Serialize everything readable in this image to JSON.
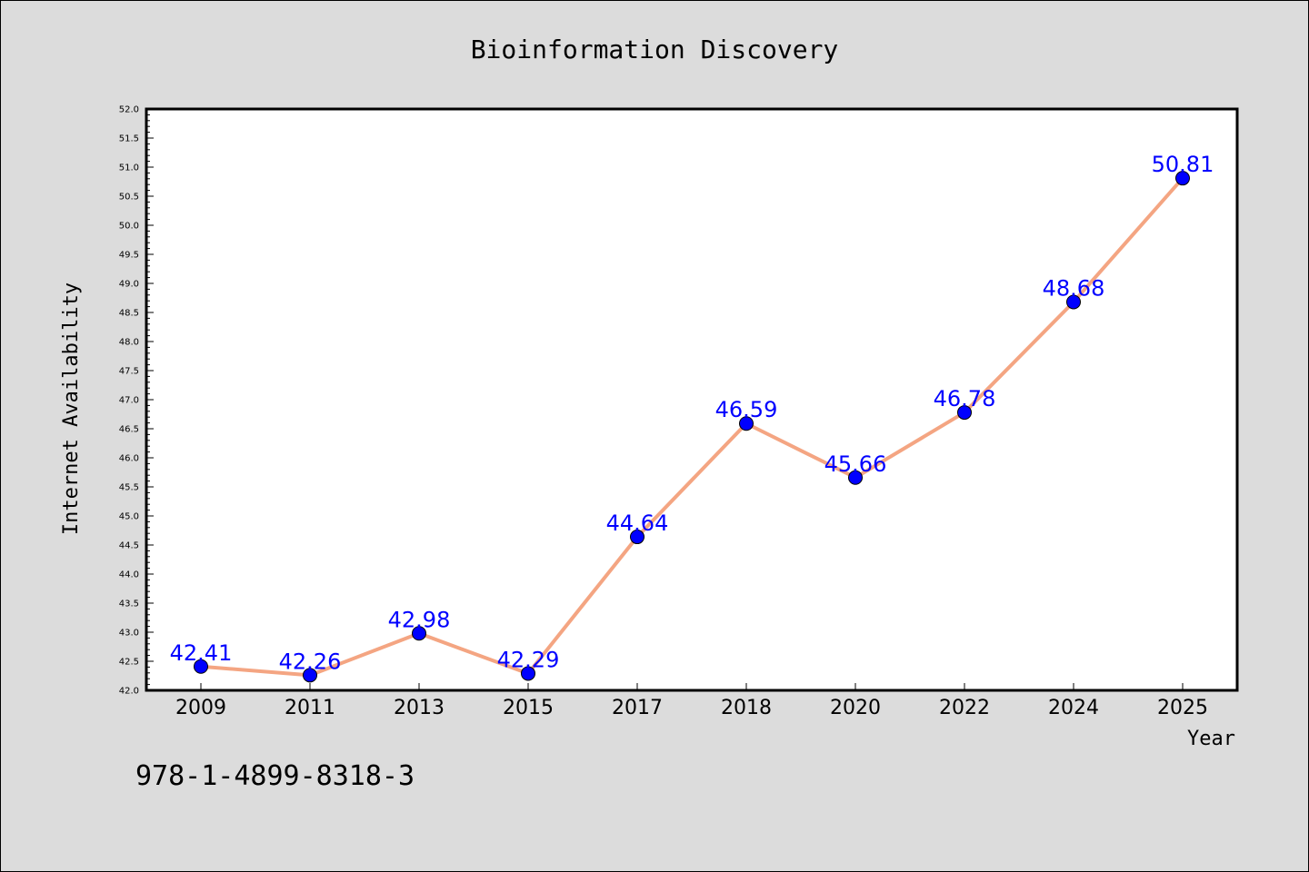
{
  "chart_data": {
    "type": "line",
    "title": "Bioinformation Discovery",
    "xlabel": "Year",
    "ylabel": "Internet Availability",
    "categories": [
      "2009",
      "2011",
      "2013",
      "2015",
      "2017",
      "2018",
      "2020",
      "2022",
      "2024",
      "2025"
    ],
    "series": [
      {
        "values": [
          42.41,
          42.26,
          42.98,
          42.29,
          44.64,
          46.59,
          45.66,
          46.78,
          48.68,
          50.81
        ],
        "labels": [
          "42.41",
          "42.26",
          "42.98",
          "42.29",
          "44.64",
          "46.59",
          "45.66",
          "46.78",
          "48.68",
          "50.81"
        ],
        "line_color": "#f4a582",
        "marker_color": "#0000ff"
      }
    ],
    "ylim": [
      42.0,
      52.0
    ],
    "yticks": [
      "42.0",
      "42.5",
      "43.0",
      "43.5",
      "44.0",
      "44.5",
      "45.0",
      "45.5",
      "46.0",
      "46.5",
      "47.0",
      "47.5",
      "48.0",
      "48.5",
      "49.0",
      "49.5",
      "50.0",
      "50.5",
      "51.0",
      "51.5",
      "52.0"
    ],
    "grid": false,
    "legend": "none"
  },
  "footer_text": "978-1-4899-8318-3",
  "colors": {
    "background": "#dcdcdc",
    "plot_area": "#ffffff",
    "line": "#f4a582",
    "marker": "#0000ff",
    "data_label": "#0000ff"
  }
}
